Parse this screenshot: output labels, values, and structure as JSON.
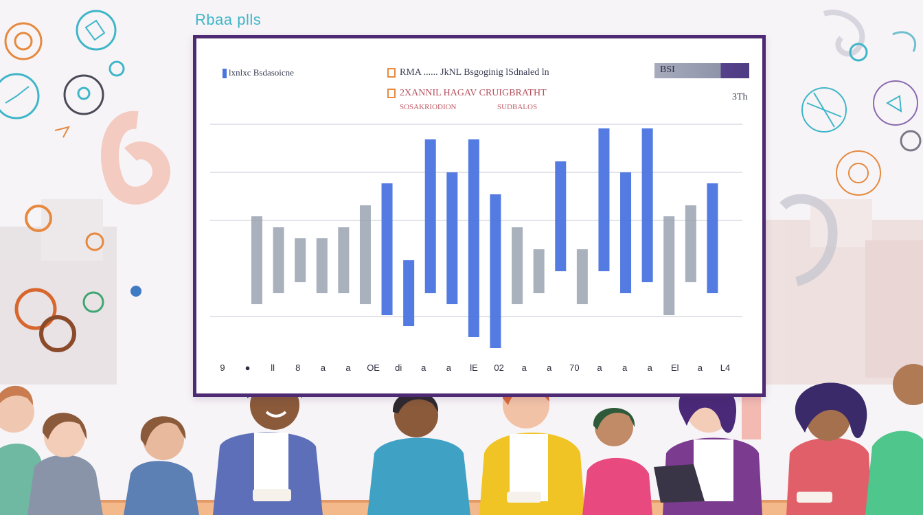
{
  "header": {
    "title_tag": "Rbaa plls"
  },
  "board": {
    "legend_left": "lxnlxc Bsdasoicne",
    "legend_row_1": "RMA ...... JkNL Bsgoginig lSdnaled ln",
    "legend_row_2": "2XANNIL HAGAV CRUIGBRATHT",
    "legend_sub_1": "SOSAKRIODION",
    "legend_sub_2": "SUDBALOS",
    "badge": "BSI",
    "right_tag": "3Th",
    "x_ticks": [
      "9",
      "●",
      "ll",
      "8",
      "a",
      "a",
      "OE",
      "di",
      "a",
      "a",
      "lE",
      "02",
      "a",
      "a",
      "70",
      "a",
      "a",
      "a",
      "El",
      "a",
      "L4"
    ]
  },
  "chart_data": {
    "type": "bar",
    "series": [
      {
        "values": [
          3,
          2.5,
          2,
          2,
          2.5,
          3.5,
          4.5,
          1,
          6.5,
          5,
          6.5,
          4,
          2.5,
          1.5,
          5.5,
          1.5,
          7,
          5,
          7,
          3,
          3.5,
          4.5
        ]
      },
      {
        "values": [
          -1,
          -0.5,
          0,
          -0.5,
          -0.5,
          -1,
          -1.5,
          -2,
          -0.5,
          -1,
          -2.5,
          -3,
          -1,
          -0.5,
          0.5,
          -1,
          0.5,
          -0.5,
          0,
          -1.5,
          0,
          -0.5
        ]
      }
    ]
  },
  "colors": {
    "board_border": "#4d2a73",
    "bar_blue": "#4a74e0",
    "bar_grey": "#9aa3b0",
    "accent_teal": "#3fb6c8",
    "accent_orange": "#e58a3f"
  },
  "people": [
    {
      "name": "person-left-1",
      "shirt": "#6fb8a2"
    },
    {
      "name": "person-left-2",
      "shirt": "#8a94a8"
    },
    {
      "name": "person-left-3",
      "shirt": "#5c7fb4"
    },
    {
      "name": "person-center-1",
      "shirt": "#5d6fb8"
    },
    {
      "name": "person-center-2",
      "shirt": "#3fa1c4"
    },
    {
      "name": "person-center-3",
      "shirt": "#f0c425"
    },
    {
      "name": "person-center-4",
      "shirt": "#e84a7f"
    },
    {
      "name": "person-right-1",
      "shirt": "#7b3b8f"
    },
    {
      "name": "person-right-2",
      "shirt": "#e15f68"
    },
    {
      "name": "person-right-3",
      "shirt": "#4fc68b"
    }
  ]
}
